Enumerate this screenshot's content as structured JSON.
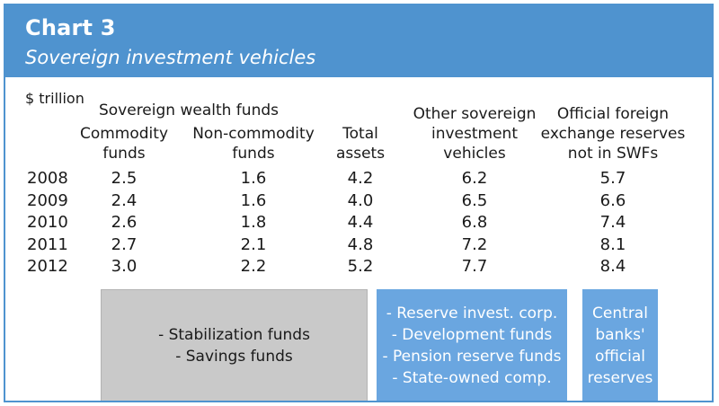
{
  "title": "Chart 3",
  "subtitle": "Sovereign investment vehicles",
  "colors": {
    "header": "#4f93cf",
    "blue_box": "#6aa6e0",
    "gray_box": "#c9c9c9"
  },
  "chart_data": {
    "type": "table",
    "unit": "$ trillion",
    "group_header": "Sovereign wealth funds",
    "columns": [
      {
        "label_lines": [
          "Commodity",
          "funds"
        ]
      },
      {
        "label_lines": [
          "Non-commodity",
          "funds"
        ]
      },
      {
        "label_lines": [
          "Total",
          "assets"
        ]
      },
      {
        "label_lines": [
          "Other sovereign",
          "investment",
          "vehicles"
        ]
      },
      {
        "label_lines": [
          "Official foreign",
          "exchange reserves",
          "not in SWFs"
        ]
      }
    ],
    "rows": [
      {
        "year": "2008",
        "values": [
          "2.5",
          "1.6",
          "4.2",
          "6.2",
          "5.7"
        ]
      },
      {
        "year": "2009",
        "values": [
          "2.4",
          "1.6",
          "4.0",
          "6.5",
          "6.6"
        ]
      },
      {
        "year": "2010",
        "values": [
          "2.6",
          "1.8",
          "4.4",
          "6.8",
          "7.4"
        ]
      },
      {
        "year": "2011",
        "values": [
          "2.7",
          "2.1",
          "4.8",
          "7.2",
          "8.1"
        ]
      },
      {
        "year": "2012",
        "values": [
          "3.0",
          "2.2",
          "5.2",
          "7.7",
          "8.4"
        ]
      }
    ],
    "boxes": [
      {
        "style": "gray",
        "lines": [
          "- Stabilization funds",
          "- Savings funds"
        ]
      },
      {
        "style": "blue",
        "lines": [
          "- Reserve invest. corp.",
          "- Development funds",
          "- Pension reserve funds",
          "- State-owned comp."
        ]
      },
      {
        "style": "blue",
        "lines": [
          "Central",
          "banks'",
          "official",
          "reserves"
        ]
      }
    ]
  }
}
